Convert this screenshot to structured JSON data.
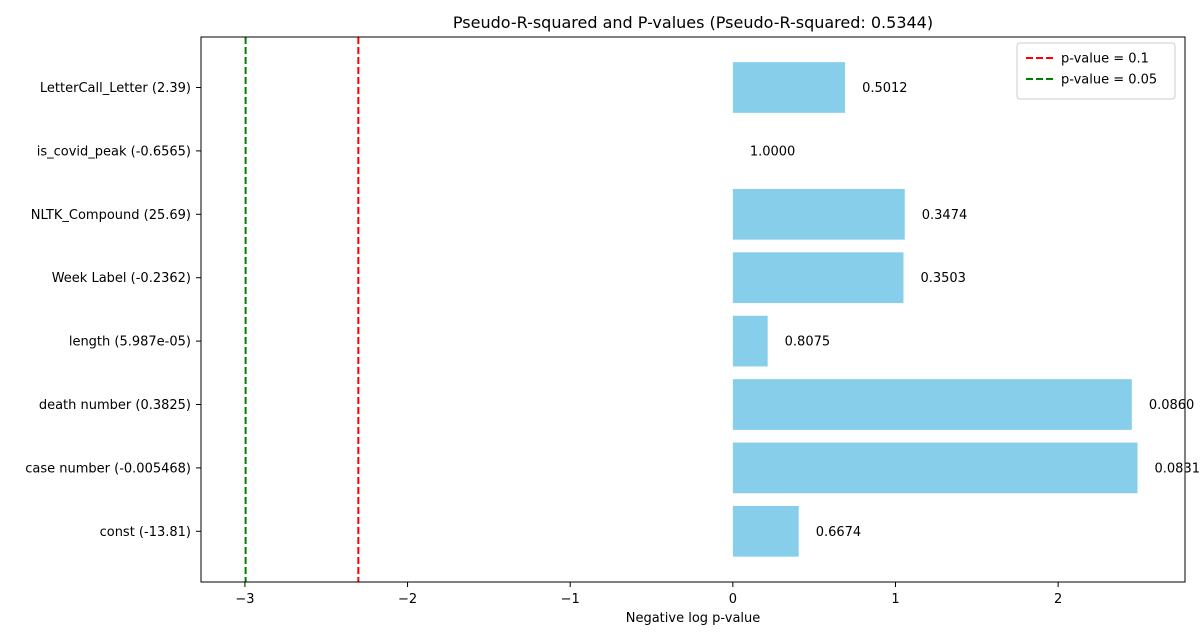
{
  "chart_data": {
    "type": "bar",
    "orientation": "horizontal",
    "title": "Pseudo-R-squared and P-values (Pseudo-R-squared: 0.5344)",
    "xlabel": "Negative log p-value",
    "ylabel": "",
    "xlim": [
      -3.27,
      2.78
    ],
    "xticks": [
      -3,
      -2,
      -1,
      0,
      1,
      2
    ],
    "xtick_labels": [
      "−3",
      "−2",
      "−1",
      "0",
      "1",
      "2"
    ],
    "grid": false,
    "bar_color": "#87ceeb",
    "categories": [
      "LetterCall_Letter (2.39)",
      "is_covid_peak (-0.6565)",
      "NLTK_Compound (25.69)",
      "Week Label (-0.2362)",
      "length (5.987e-05)",
      "death number (0.3825)",
      "case number (-0.005468)",
      "const (-13.81)"
    ],
    "values": [
      0.69,
      0.0,
      1.057,
      1.049,
      0.214,
      2.453,
      2.488,
      0.405
    ],
    "data_labels": [
      "0.5012",
      "1.0000",
      "0.3474",
      "0.3503",
      "0.8075",
      "0.0860",
      "0.0831",
      "0.6674"
    ],
    "reference_lines": [
      {
        "name": "p-value = 0.1",
        "x": -2.302585,
        "color": "#ff0000",
        "style": "dashed"
      },
      {
        "name": "p-value = 0.05",
        "x": -2.995732,
        "color": "#008000",
        "style": "dashed"
      }
    ],
    "legend": {
      "position": "top-right",
      "entries": [
        "p-value = 0.1",
        "p-value = 0.05"
      ]
    }
  }
}
